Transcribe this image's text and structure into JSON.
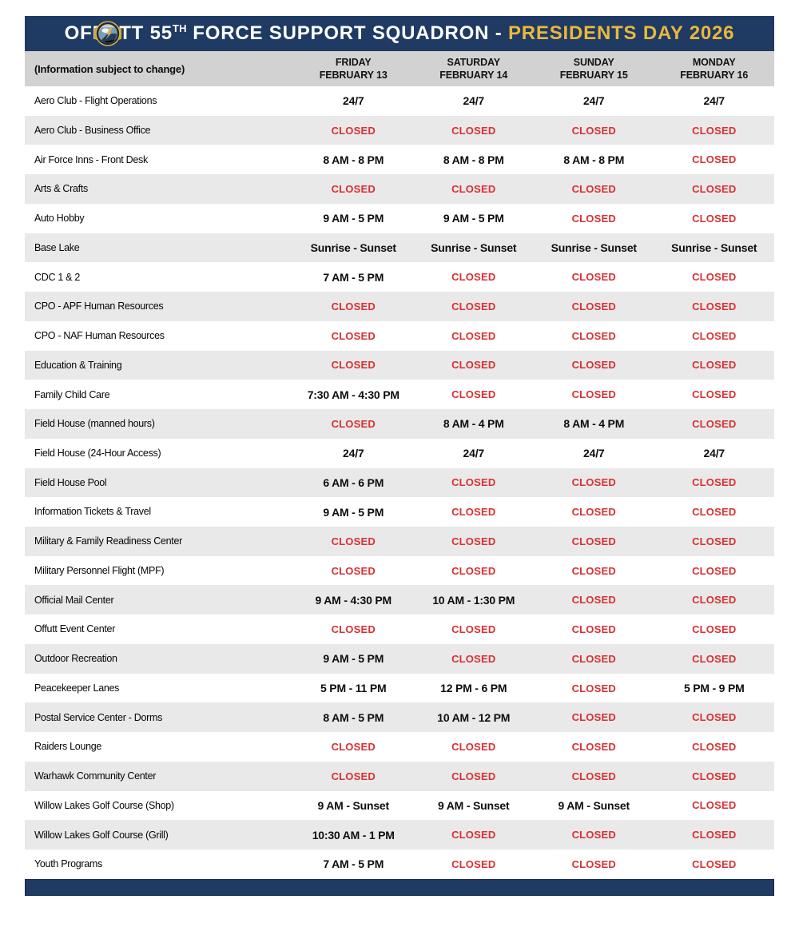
{
  "page": {
    "title": {
      "prefix": "OFFUTT 55",
      "superscript": "TH",
      "middle": " FORCE SUPPORT SQUADRON - ",
      "highlight": "PRESIDENTS DAY 2026"
    },
    "note": "(Information subject to change)",
    "emblem": "55th-force-support-squadron-patch"
  },
  "colors": {
    "navy": "#1f3a63",
    "gold": "#e9b83c",
    "red": "#d93032",
    "header_gray": "#d2d2d2",
    "row_alt_gray": "#e9e9e9"
  },
  "columns": [
    {
      "day": "FRIDAY",
      "date": "FEBRUARY 13"
    },
    {
      "day": "SATURDAY",
      "date": "FEBRUARY 14"
    },
    {
      "day": "SUNDAY",
      "date": "FEBRUARY 15"
    },
    {
      "day": "MONDAY",
      "date": "FEBRUARY 16"
    }
  ],
  "rows": [
    {
      "facility": "Aero Club - Flight Operations",
      "hours": [
        "24/7",
        "24/7",
        "24/7",
        "24/7"
      ]
    },
    {
      "facility": "Aero Club - Business Office",
      "hours": [
        "CLOSED",
        "CLOSED",
        "CLOSED",
        "CLOSED"
      ]
    },
    {
      "facility": "Air Force Inns - Front Desk",
      "hours": [
        "8 AM - 8 PM",
        "8 AM - 8 PM",
        "8 AM - 8 PM",
        "CLOSED"
      ]
    },
    {
      "facility": "Arts & Crafts",
      "hours": [
        "CLOSED",
        "CLOSED",
        "CLOSED",
        "CLOSED"
      ]
    },
    {
      "facility": "Auto Hobby",
      "hours": [
        "9 AM - 5 PM",
        "9 AM - 5 PM",
        "CLOSED",
        "CLOSED"
      ]
    },
    {
      "facility": "Base Lake",
      "hours": [
        "Sunrise - Sunset",
        "Sunrise - Sunset",
        "Sunrise - Sunset",
        "Sunrise - Sunset"
      ]
    },
    {
      "facility": "CDC 1 & 2",
      "hours": [
        "7 AM - 5 PM",
        "CLOSED",
        "CLOSED",
        "CLOSED"
      ]
    },
    {
      "facility": "CPO - APF Human Resources",
      "hours": [
        "CLOSED",
        "CLOSED",
        "CLOSED",
        "CLOSED"
      ]
    },
    {
      "facility": "CPO - NAF Human Resources",
      "hours": [
        "CLOSED",
        "CLOSED",
        "CLOSED",
        "CLOSED"
      ]
    },
    {
      "facility": "Education & Training",
      "hours": [
        "CLOSED",
        "CLOSED",
        "CLOSED",
        "CLOSED"
      ]
    },
    {
      "facility": "Family Child Care",
      "hours": [
        "7:30 AM - 4:30 PM",
        "CLOSED",
        "CLOSED",
        "CLOSED"
      ]
    },
    {
      "facility": "Field House (manned hours)",
      "hours": [
        "CLOSED",
        "8 AM - 4 PM",
        "8 AM - 4 PM",
        "CLOSED"
      ]
    },
    {
      "facility": "Field House (24-Hour Access)",
      "hours": [
        "24/7",
        "24/7",
        "24/7",
        "24/7"
      ]
    },
    {
      "facility": "Field House Pool",
      "hours": [
        "6 AM - 6 PM",
        "CLOSED",
        "CLOSED",
        "CLOSED"
      ]
    },
    {
      "facility": "Information Tickets & Travel",
      "hours": [
        "9 AM - 5 PM",
        "CLOSED",
        "CLOSED",
        "CLOSED"
      ]
    },
    {
      "facility": "Military & Family Readiness Center",
      "hours": [
        "CLOSED",
        "CLOSED",
        "CLOSED",
        "CLOSED"
      ]
    },
    {
      "facility": "Military Personnel Flight (MPF)",
      "hours": [
        "CLOSED",
        "CLOSED",
        "CLOSED",
        "CLOSED"
      ]
    },
    {
      "facility": "Official Mail Center",
      "hours": [
        "9 AM - 4:30 PM",
        "10 AM - 1:30 PM",
        "CLOSED",
        "CLOSED"
      ]
    },
    {
      "facility": "Offutt Event Center",
      "hours": [
        "CLOSED",
        "CLOSED",
        "CLOSED",
        "CLOSED"
      ]
    },
    {
      "facility": "Outdoor Recreation",
      "hours": [
        "9 AM - 5 PM",
        "CLOSED",
        "CLOSED",
        "CLOSED"
      ]
    },
    {
      "facility": "Peacekeeper Lanes",
      "hours": [
        "5 PM - 11 PM",
        "12 PM - 6 PM",
        "CLOSED",
        "5 PM - 9 PM"
      ]
    },
    {
      "facility": "Postal Service Center - Dorms",
      "hours": [
        "8 AM - 5 PM",
        "10 AM - 12 PM",
        "CLOSED",
        "CLOSED"
      ]
    },
    {
      "facility": "Raiders Lounge",
      "hours": [
        "CLOSED",
        "CLOSED",
        "CLOSED",
        "CLOSED"
      ]
    },
    {
      "facility": "Warhawk Community Center",
      "hours": [
        "CLOSED",
        "CLOSED",
        "CLOSED",
        "CLOSED"
      ]
    },
    {
      "facility": "Willow Lakes Golf Course (Shop)",
      "hours": [
        "9 AM - Sunset",
        "9 AM - Sunset",
        "9 AM - Sunset",
        "CLOSED"
      ]
    },
    {
      "facility": "Willow Lakes Golf Course (Grill)",
      "hours": [
        "10:30 AM - 1 PM",
        "CLOSED",
        "CLOSED",
        "CLOSED"
      ]
    },
    {
      "facility": "Youth Programs",
      "hours": [
        "7 AM - 5 PM",
        "CLOSED",
        "CLOSED",
        "CLOSED"
      ]
    }
  ]
}
